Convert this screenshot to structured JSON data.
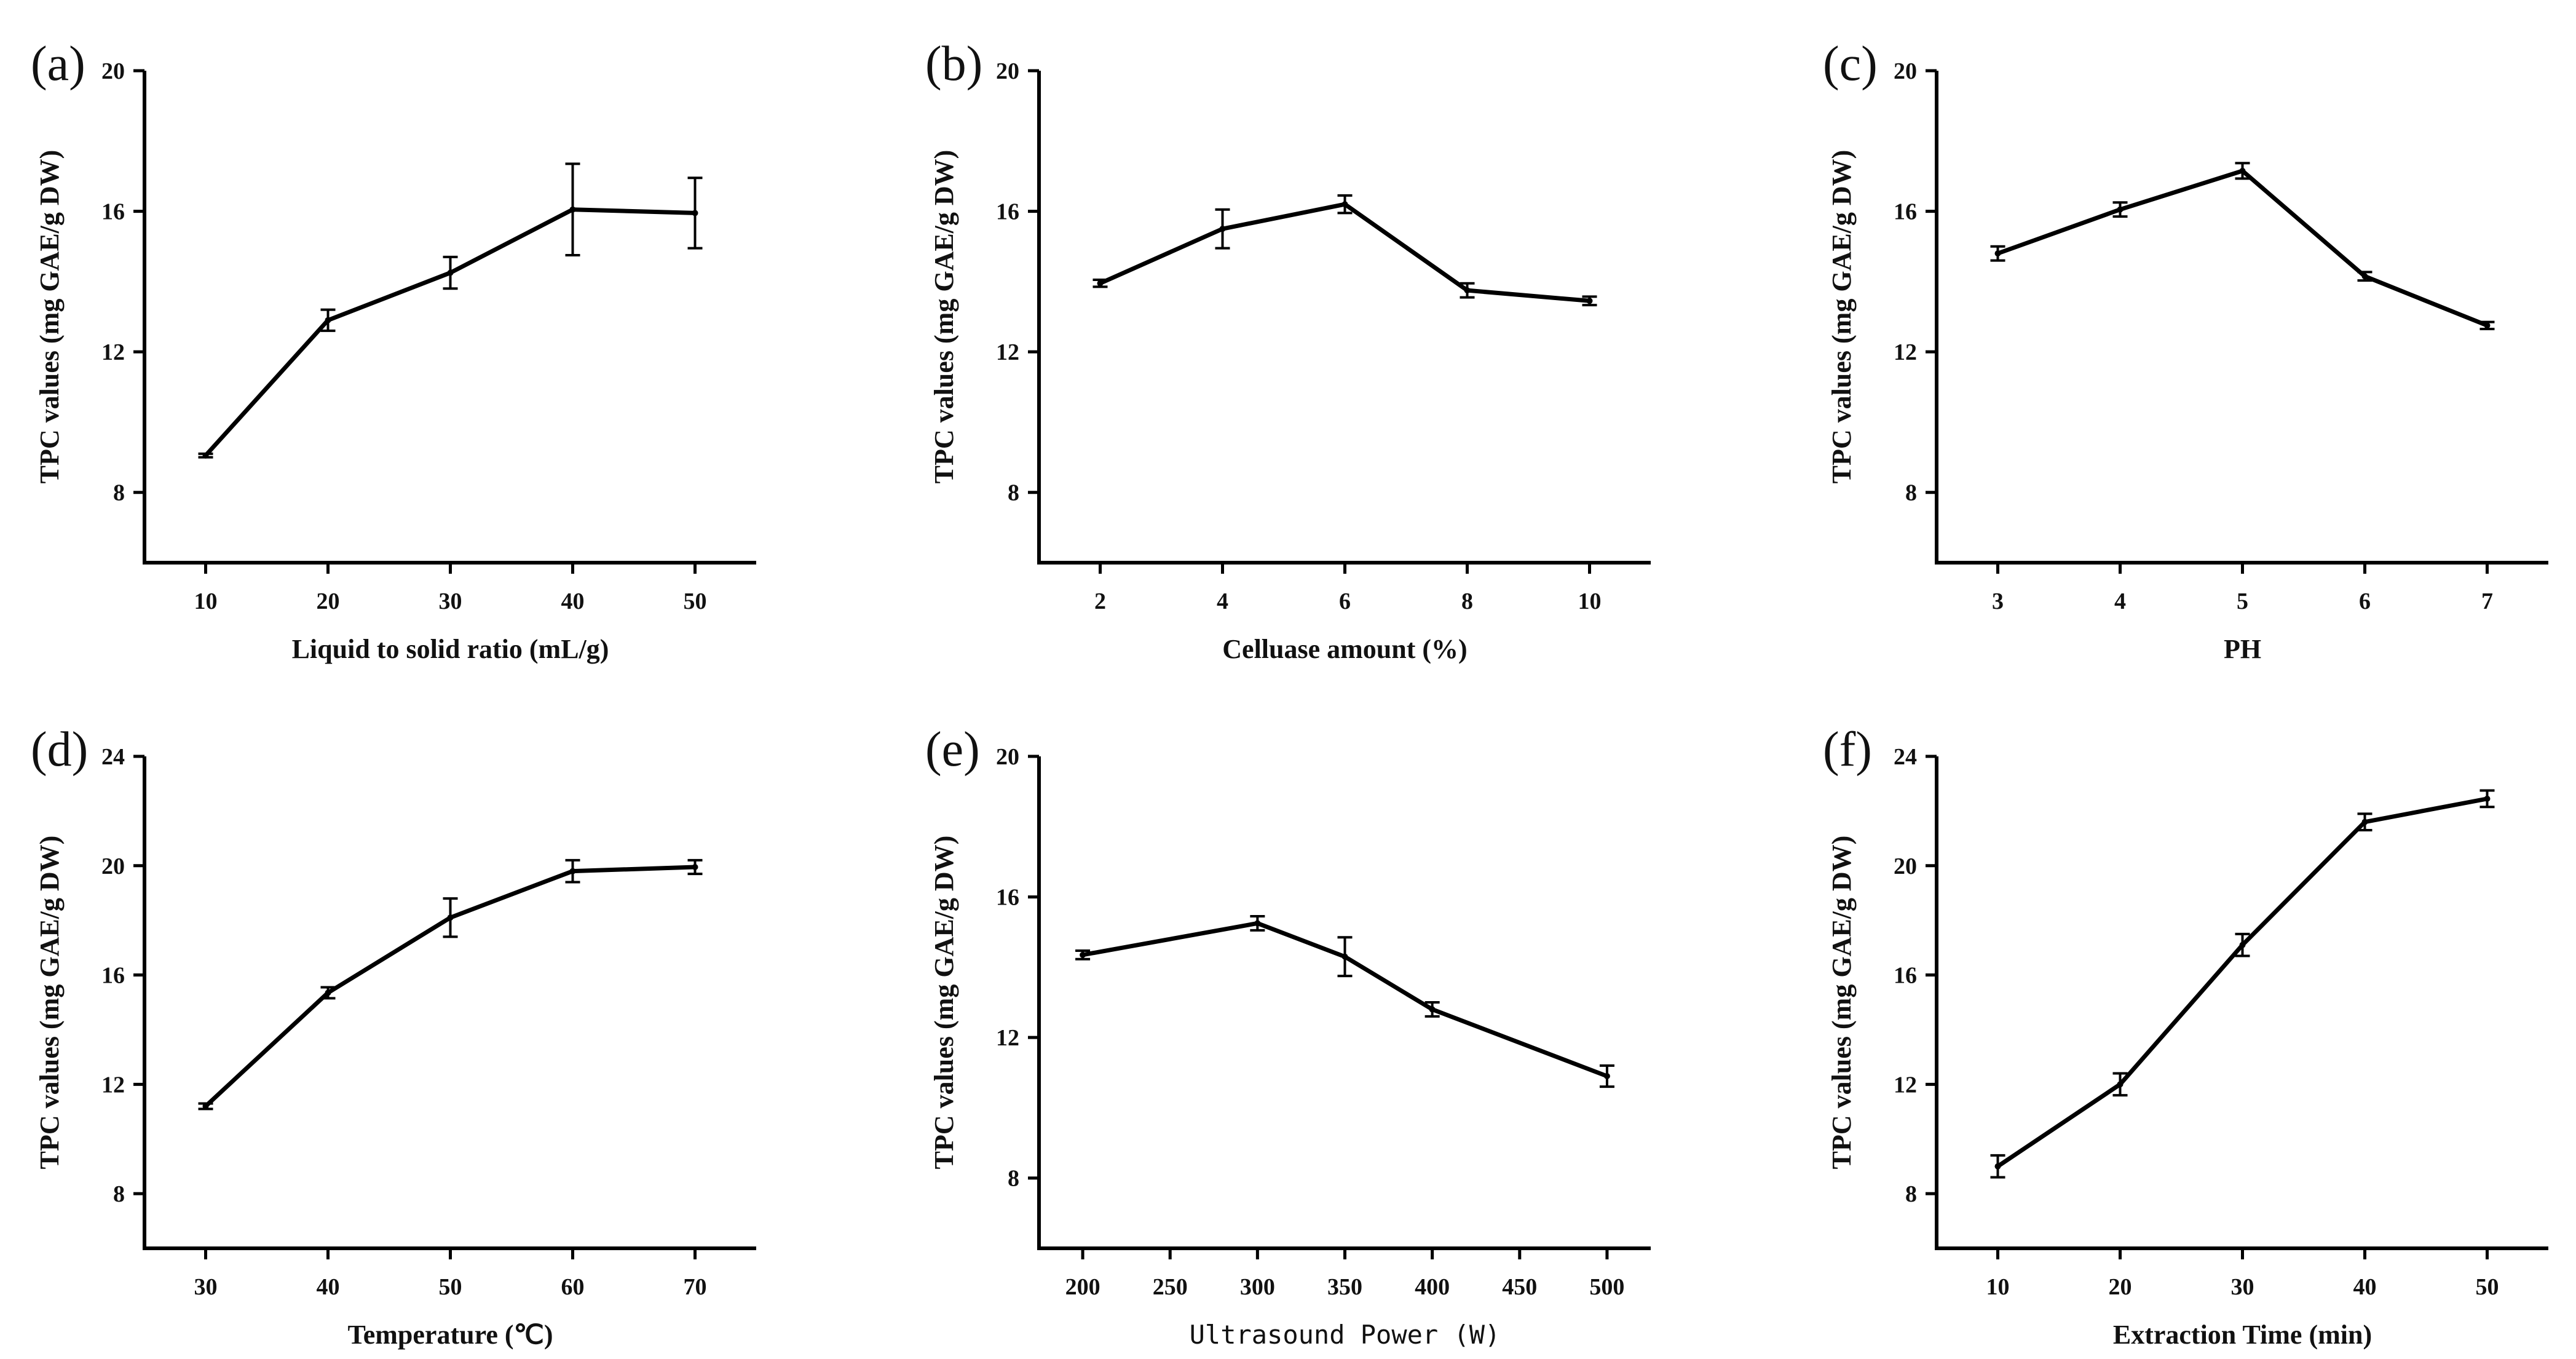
{
  "chart_data": [
    {
      "type": "line",
      "panel": "(a)",
      "x": [
        10,
        20,
        30,
        40,
        50
      ],
      "values": [
        9.05,
        12.9,
        14.25,
        16.05,
        15.95
      ],
      "errors": [
        0.05,
        0.3,
        0.45,
        1.3,
        1.0
      ],
      "xticks": [
        "10",
        "20",
        "30",
        "40",
        "50"
      ],
      "xlim": [
        5,
        55
      ],
      "ylim": [
        6,
        20
      ],
      "yticks": [
        "8",
        "12",
        "16",
        "20"
      ],
      "xlabel": "Liquid to solid ratio (mL/g)",
      "ylabel": "TPC values (mg GAE/g DW)"
    },
    {
      "type": "line",
      "panel": "(b)",
      "x": [
        2,
        4,
        6,
        8,
        10
      ],
      "values": [
        13.95,
        15.5,
        16.2,
        13.75,
        13.45
      ],
      "errors": [
        0.1,
        0.55,
        0.25,
        0.2,
        0.12
      ],
      "xticks": [
        "2",
        "4",
        "6",
        "8",
        "10"
      ],
      "xlim": [
        1,
        11
      ],
      "ylim": [
        6,
        20
      ],
      "yticks": [
        "8",
        "12",
        "16",
        "20"
      ],
      "xlabel": "Celluase amount (%)",
      "ylabel": "TPC values (mg GAE/g DW)"
    },
    {
      "type": "line",
      "panel": "(c)",
      "x": [
        3,
        4,
        5,
        6,
        7
      ],
      "values": [
        14.8,
        16.05,
        17.15,
        14.15,
        12.75
      ],
      "errors": [
        0.2,
        0.2,
        0.22,
        0.12,
        0.1
      ],
      "xticks": [
        "3",
        "4",
        "5",
        "6",
        "7"
      ],
      "xlim": [
        2.5,
        7.5
      ],
      "ylim": [
        6,
        20
      ],
      "yticks": [
        "8",
        "12",
        "16",
        "20"
      ],
      "xlabel": "PH",
      "ylabel": "TPC values (mg GAE/g DW)"
    },
    {
      "type": "line",
      "panel": "(d)",
      "x": [
        30,
        40,
        50,
        60,
        70
      ],
      "values": [
        11.2,
        15.35,
        18.1,
        19.8,
        19.95
      ],
      "errors": [
        0.1,
        0.2,
        0.7,
        0.4,
        0.25
      ],
      "xticks": [
        "30",
        "40",
        "50",
        "60",
        "70"
      ],
      "xlim": [
        25,
        75
      ],
      "ylim": [
        6,
        24
      ],
      "yticks": [
        "8",
        "12",
        "16",
        "20",
        "24"
      ],
      "xlabel": "Temperature (℃)",
      "ylabel": "TPC values (mg GAE/g DW)"
    },
    {
      "type": "line",
      "panel": "(e)",
      "x": [
        200,
        300,
        350,
        400,
        500
      ],
      "values": [
        14.35,
        15.25,
        14.3,
        12.8,
        10.9
      ],
      "errors": [
        0.12,
        0.2,
        0.55,
        0.2,
        0.3
      ],
      "xticks": [
        "200",
        "250",
        "300",
        "350",
        "400",
        "450",
        "500"
      ],
      "xlim": [
        175,
        525
      ],
      "ylim": [
        6,
        20
      ],
      "yticks": [
        "8",
        "12",
        "16",
        "20"
      ],
      "xlabel": "Ultrasound Power (W)",
      "ylabel": "TPC values (mg GAE/g DW)"
    },
    {
      "type": "line",
      "panel": "(f)",
      "x": [
        10,
        20,
        30,
        40,
        50
      ],
      "values": [
        9.0,
        12.0,
        17.1,
        21.6,
        22.45
      ],
      "errors": [
        0.4,
        0.4,
        0.4,
        0.3,
        0.3
      ],
      "xticks": [
        "10",
        "20",
        "30",
        "40",
        "50"
      ],
      "xlim": [
        5,
        55
      ],
      "ylim": [
        6,
        24
      ],
      "yticks": [
        "8",
        "12",
        "16",
        "20",
        "24"
      ],
      "xlabel": "Extraction Time (min)",
      "ylabel": "TPC values (mg GAE/g DW)"
    }
  ]
}
